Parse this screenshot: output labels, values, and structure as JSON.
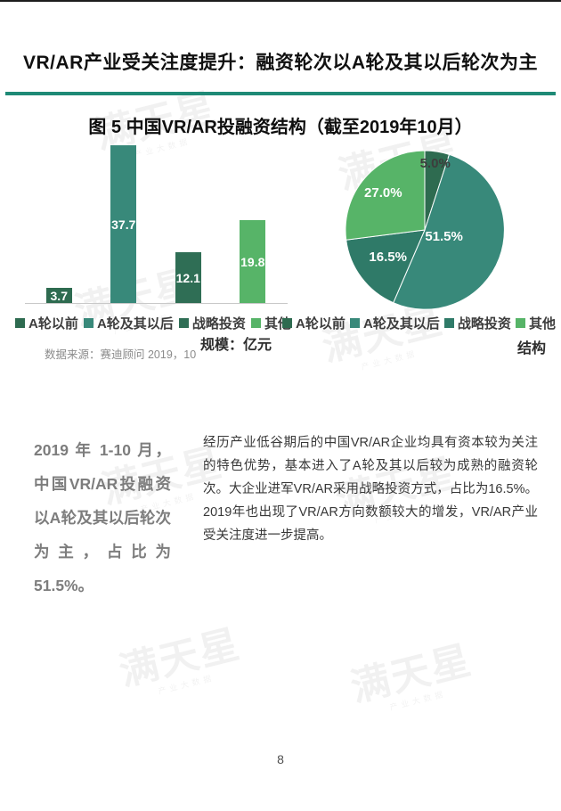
{
  "header": {
    "title": "VR/AR产业受关注度提升：融资轮次以A轮及其以后轮次为主",
    "rule_color": "#1e8a76"
  },
  "figure": {
    "title": "图 5 中国VR/AR投融资结构（截至2019年10月）",
    "source": "数据来源：赛迪顾问 2019，10"
  },
  "chart_data": [
    {
      "type": "bar",
      "title": "图 5 中国VR/AR投融资结构（截至2019年10月）",
      "categories": [
        "A轮以前",
        "A轮及其以后",
        "战略投资",
        "其他"
      ],
      "values": [
        3.7,
        37.7,
        12.1,
        19.8
      ],
      "value_labels": [
        "3.7",
        "37.7",
        "12.1",
        "19.8"
      ],
      "colors": [
        "#2e6b50",
        "#38897a",
        "#2f6e55",
        "#57b468"
      ],
      "value_label_color": "#ffffff",
      "ylabel": "规模：亿元",
      "ylim": [
        0,
        40
      ],
      "grid": false,
      "legend_position": "bottom"
    },
    {
      "type": "pie",
      "title": "图 5 中国VR/AR投融资结构（截至2019年10月）",
      "categories": [
        "A轮以前",
        "A轮及其以后",
        "战略投资",
        "其他"
      ],
      "values": [
        5.0,
        51.5,
        16.5,
        27.0
      ],
      "labels": [
        "5.0%",
        "51.5%",
        "16.5%",
        "27.0%"
      ],
      "colors": [
        "#2e6b50",
        "#38897a",
        "#2f7a68",
        "#57b468"
      ],
      "label_colors": [
        "#3d3d3d",
        "#ffffff",
        "#ffffff",
        "#ffffff"
      ],
      "label_radius": [
        0.84,
        0.26,
        0.58,
        0.7
      ],
      "start_angle_deg": 0,
      "direction": "clockwise",
      "ylabel": "结构",
      "legend_position": "bottom"
    }
  ],
  "commentary": {
    "highlight": "2019 年 1-10 月，中国VR/AR投融资以A轮及其以后轮次为主，占比为51.5%。",
    "body": "经历产业低谷期后的中国VR/AR企业均具有资本较为关注的特色优势，基本进入了A轮及其以后较为成熟的融资轮次。大企业进军VR/AR采用战略投资方式，占比为16.5%。2019年也出现了VR/AR方向数额较大的增发，VR/AR产业受关注度进一步提高。"
  },
  "watermark": {
    "text": "满天星",
    "subtext": "产业大数据"
  },
  "footer": {
    "page_number": "8"
  }
}
